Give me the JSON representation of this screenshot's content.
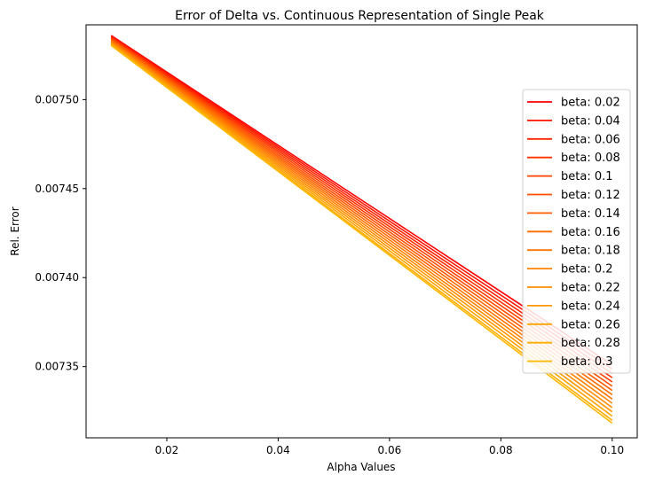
{
  "chart_data": {
    "type": "line",
    "title": "Error of Delta vs. Continuous Representation of Single Peak",
    "xlabel": "Alpha Values",
    "ylabel": "Rel. Error",
    "x": [
      0.01,
      0.1
    ],
    "xlim": [
      0.0055,
      0.1045
    ],
    "ylim": [
      0.00731,
      0.007542
    ],
    "x_ticks": [
      0.02,
      0.04,
      0.06,
      0.08,
      0.1
    ],
    "x_tick_labels": [
      "0.02",
      "0.04",
      "0.06",
      "0.08",
      "0.10"
    ],
    "y_ticks": [
      0.00735,
      0.0074,
      0.00745,
      0.0075
    ],
    "y_tick_labels": [
      "0.00735",
      "0.00740",
      "0.00745",
      "0.00750"
    ],
    "grid": false,
    "legend_position": "right",
    "series": [
      {
        "name": "beta: 0.02",
        "color": "#ff0000",
        "values": [
          0.007536,
          0.007351
        ]
      },
      {
        "name": "beta: 0.04",
        "color": "#ff1400",
        "values": [
          0.0075356,
          0.0073486
        ]
      },
      {
        "name": "beta: 0.06",
        "color": "#ff2400",
        "values": [
          0.0075352,
          0.0073462
        ]
      },
      {
        "name": "beta: 0.08",
        "color": "#ff3300",
        "values": [
          0.0075348,
          0.0073438
        ]
      },
      {
        "name": "beta: 0.1",
        "color": "#ff4200",
        "values": [
          0.0075344,
          0.0073414
        ]
      },
      {
        "name": "beta: 0.12",
        "color": "#ff5000",
        "values": [
          0.007534,
          0.007339
        ]
      },
      {
        "name": "beta: 0.14",
        "color": "#ff5d00",
        "values": [
          0.0075336,
          0.0073366
        ]
      },
      {
        "name": "beta: 0.16",
        "color": "#ff6a00",
        "values": [
          0.0075332,
          0.0073342
        ]
      },
      {
        "name": "beta: 0.18",
        "color": "#ff7600",
        "values": [
          0.0075328,
          0.0073318
        ]
      },
      {
        "name": "beta: 0.2",
        "color": "#ff8200",
        "values": [
          0.0075324,
          0.0073294
        ]
      },
      {
        "name": "beta: 0.22",
        "color": "#ff8d00",
        "values": [
          0.007532,
          0.007327
        ]
      },
      {
        "name": "beta: 0.24",
        "color": "#ff9800",
        "values": [
          0.0075316,
          0.0073246
        ]
      },
      {
        "name": "beta: 0.26",
        "color": "#ffa300",
        "values": [
          0.0075312,
          0.0073222
        ]
      },
      {
        "name": "beta: 0.28",
        "color": "#ffad00",
        "values": [
          0.0075308,
          0.0073198
        ]
      },
      {
        "name": "beta: 0.3",
        "color": "#ffb700",
        "values": [
          0.0075304,
          0.0073182
        ]
      }
    ]
  }
}
